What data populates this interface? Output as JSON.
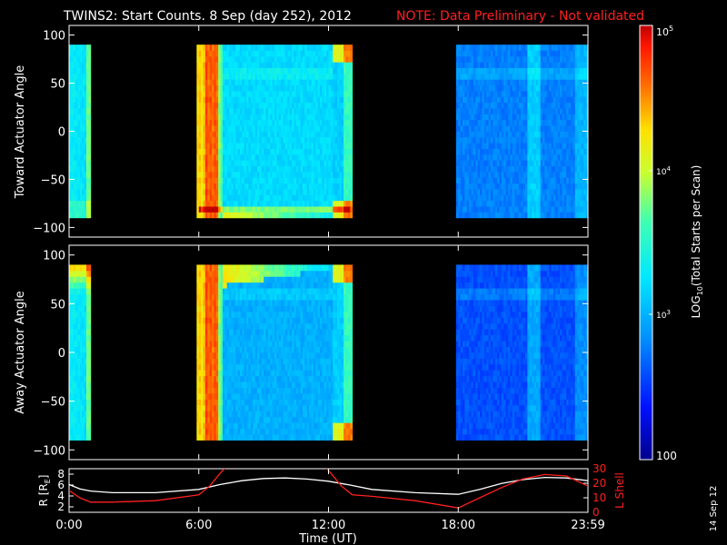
{
  "title": {
    "main": "TWINS2: Start Counts.  8 Sep (day 252), 2012",
    "note": "NOTE: Data Preliminary - Not validated"
  },
  "stamp": "14 Sep 12",
  "colors": {
    "background": "#000000",
    "text": "#ffffff",
    "note": "#ff2020",
    "r_line": "#ffffff",
    "lshell_line": "#ff2020"
  },
  "chart_data": [
    {
      "type": "heatmap",
      "ylabel": "Toward Actuator Angle",
      "ylim": [
        -110,
        110
      ],
      "y_ticks": [
        100,
        50,
        0,
        -50,
        -100
      ],
      "y_tick_labels": [
        "100",
        "50",
        "0",
        "−50",
        "−100"
      ],
      "data_y_range": [
        -90,
        90
      ],
      "x_range_hours": [
        0,
        24
      ],
      "data_intervals_hours": [
        [
          0.0,
          1.0
        ],
        [
          5.9,
          13.1
        ],
        [
          17.9,
          24.0
        ]
      ],
      "color_scale": "log",
      "zlim": [
        100,
        100000
      ]
    },
    {
      "type": "heatmap",
      "ylabel": "Away Actuator Angle",
      "ylim": [
        -110,
        110
      ],
      "y_ticks": [
        100,
        50,
        0,
        -50,
        -100
      ],
      "y_tick_labels": [
        "100",
        "50",
        "0",
        "−50",
        "−100"
      ],
      "data_y_range": [
        -90,
        90
      ],
      "x_range_hours": [
        0,
        24
      ],
      "data_intervals_hours": [
        [
          0.0,
          1.0
        ],
        [
          5.9,
          13.1
        ],
        [
          17.9,
          24.0
        ]
      ],
      "color_scale": "log",
      "zlim": [
        100,
        100000
      ]
    },
    {
      "type": "line",
      "ylabel": "R [R",
      "ylabel_sub": "E",
      "ylabel_close": "]",
      "ylim": [
        1,
        9
      ],
      "y_ticks": [
        2,
        4,
        6,
        8
      ],
      "y_tick_labels": [
        "2",
        "4",
        "6",
        "8"
      ],
      "right_label": "L Shell",
      "right_ylim": [
        0,
        30
      ],
      "right_ticks": [
        0,
        10,
        20,
        30
      ],
      "right_tick_labels": [
        "0",
        "10",
        "20",
        "30"
      ],
      "xlabel": "Time (UT)",
      "x_ticks": [
        0,
        6,
        12,
        18,
        24
      ],
      "x_tick_labels": [
        "0:00",
        "6:00",
        "12:00",
        "18:00",
        "23:59"
      ],
      "series": [
        {
          "x": [
            0,
            0.5,
            1,
            2,
            4,
            6,
            7,
            8,
            9,
            10,
            11,
            12,
            13,
            14,
            16,
            18,
            19,
            20,
            21,
            22,
            23,
            24
          ],
          "values": [
            6.1,
            5.3,
            4.9,
            4.6,
            4.6,
            5.2,
            6.1,
            6.8,
            7.2,
            7.3,
            7.1,
            6.7,
            6.0,
            5.2,
            4.6,
            4.3,
            5.2,
            6.3,
            7.0,
            7.4,
            7.3,
            6.8
          ]
        },
        {
          "axis": "right",
          "x": [
            0,
            0.5,
            1,
            2,
            4,
            6,
            6.5,
            7,
            7.3,
            11.8,
            12.1,
            12.6,
            13.1,
            14,
            16,
            18,
            19,
            20,
            21,
            22,
            23,
            24
          ],
          "values": [
            15,
            10,
            7,
            7,
            8,
            12,
            18,
            27,
            32,
            32,
            27,
            18,
            12,
            11,
            8,
            3,
            10,
            17,
            23,
            26,
            25,
            18
          ]
        }
      ]
    }
  ],
  "colorbar": {
    "label": "LOG",
    "label_sub": "10",
    "label_rest": "(Total Starts per Scan)",
    "tick_labels": {
      "top": "10",
      "top_exp": "5",
      "mid": "10",
      "mid_exp": "4",
      "low": "10",
      "low_exp": "3",
      "bottom": "100"
    },
    "tick_values": [
      100000,
      10000,
      1000,
      100
    ],
    "range": [
      100,
      100000
    ]
  }
}
